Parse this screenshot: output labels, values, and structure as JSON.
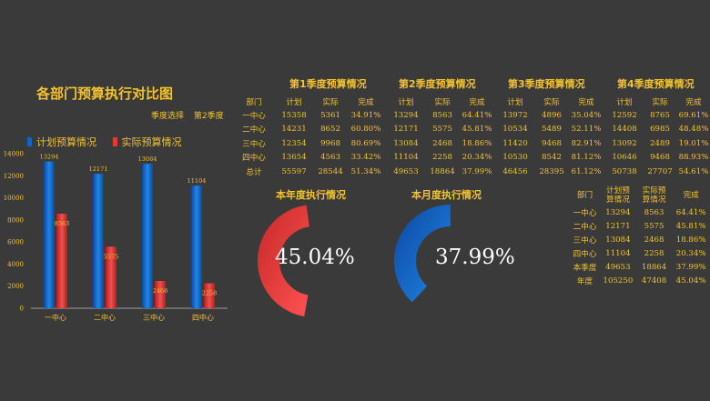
{
  "title": "各部门预算执行对比图",
  "selector": {
    "label": "季度选择",
    "value": "第2季度"
  },
  "legend": {
    "plan": "计划预算情况",
    "actual": "实际预算情况"
  },
  "colors": {
    "background": "#3a3a3a",
    "text": "#f2c230",
    "plan": "#1565c0",
    "actual": "#e53935",
    "white": "#ffffff"
  },
  "chart_data": {
    "type": "bar",
    "categories": [
      "一中心",
      "二中心",
      "三中心",
      "四中心"
    ],
    "series": [
      {
        "name": "计划预算情况",
        "values": [
          13294,
          12171,
          13084,
          11104
        ]
      },
      {
        "name": "实际预算情况",
        "values": [
          8563,
          5575,
          2468,
          2258
        ]
      }
    ],
    "ylim": [
      0,
      14000
    ],
    "yticks": [
      "0",
      "2000",
      "4000",
      "6000",
      "8000",
      "10000",
      "12000",
      "14000"
    ],
    "data_labels": true,
    "legend_position": "top-left"
  },
  "quarter_tables": {
    "header": [
      "部门",
      "计划",
      "实际",
      "完成"
    ],
    "row_labels": [
      "一中心",
      "二中心",
      "三中心",
      "四中心",
      "总计"
    ],
    "quarters": [
      {
        "title": "第1季度预算情况",
        "rows": [
          [
            "15358",
            "5361",
            "34.91%"
          ],
          [
            "14231",
            "8652",
            "60.80%"
          ],
          [
            "12354",
            "9968",
            "80.69%"
          ],
          [
            "13654",
            "4563",
            "33.42%"
          ],
          [
            "55597",
            "28544",
            "51.34%"
          ]
        ]
      },
      {
        "title": "第2季度预算情况",
        "rows": [
          [
            "13294",
            "8563",
            "64.41%"
          ],
          [
            "12171",
            "5575",
            "45.81%"
          ],
          [
            "13084",
            "2468",
            "18.86%"
          ],
          [
            "11104",
            "2258",
            "20.34%"
          ],
          [
            "49653",
            "18864",
            "37.99%"
          ]
        ]
      },
      {
        "title": "第3季度预算情况",
        "rows": [
          [
            "13972",
            "4896",
            "35.04%"
          ],
          [
            "10534",
            "5489",
            "52.11%"
          ],
          [
            "11420",
            "9468",
            "82.91%"
          ],
          [
            "10530",
            "8542",
            "81.12%"
          ],
          [
            "46456",
            "28395",
            "61.12%"
          ]
        ]
      },
      {
        "title": "第4季度预算情况",
        "rows": [
          [
            "12592",
            "8765",
            "69.61%"
          ],
          [
            "14408",
            "6985",
            "48.48%"
          ],
          [
            "13092",
            "2489",
            "19.01%"
          ],
          [
            "10646",
            "9468",
            "88.93%"
          ],
          [
            "50738",
            "27707",
            "54.61%"
          ]
        ]
      }
    ]
  },
  "gauges": {
    "year": {
      "title": "本年度执行情况",
      "value": "45.04%",
      "fraction": 0.4504
    },
    "month": {
      "title": "本月度执行情况",
      "value": "37.99%",
      "fraction": 0.3799
    }
  },
  "summary_table": {
    "header": [
      "部门",
      "计划预\n算情况",
      "实际预\n算情况",
      "完成"
    ],
    "rows": [
      [
        "一中心",
        "13294",
        "8563",
        "64.41%"
      ],
      [
        "二中心",
        "12171",
        "5575",
        "45.81%"
      ],
      [
        "三中心",
        "13084",
        "2468",
        "18.86%"
      ],
      [
        "四中心",
        "11104",
        "2258",
        "20.34%"
      ],
      [
        "本季度",
        "49653",
        "18864",
        "37.99%"
      ],
      [
        "年度",
        "105250",
        "47408",
        "45.04%"
      ]
    ]
  }
}
